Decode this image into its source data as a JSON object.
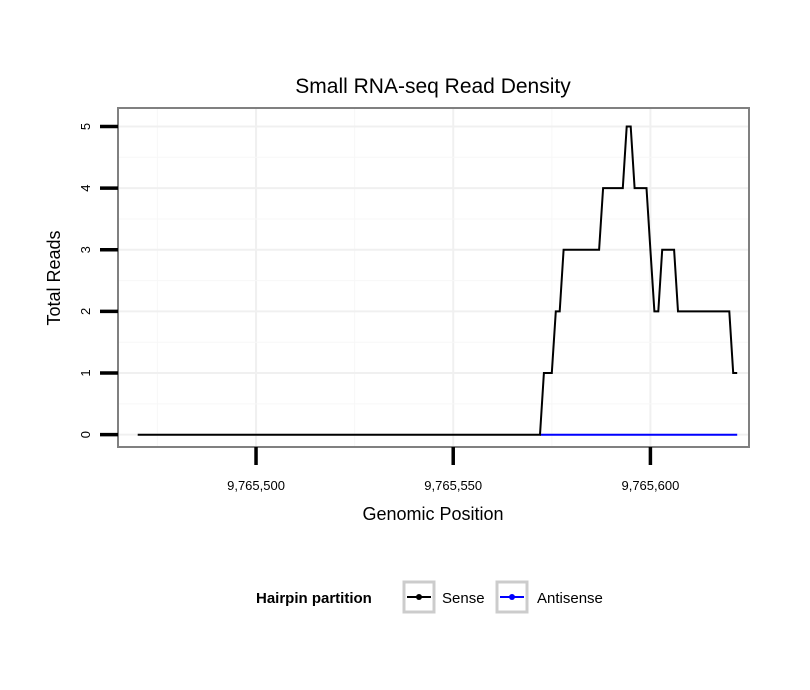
{
  "chart_data": {
    "type": "line",
    "title": "Small RNA-seq Read Density",
    "xlabel": "Genomic Position",
    "ylabel": "Total Reads",
    "xlim": [
      9765465,
      9765625
    ],
    "ylim": [
      -0.2,
      5.3
    ],
    "x_ticks": [
      9765500,
      9765550,
      9765600
    ],
    "x_tick_labels": [
      "9,765,500",
      "9,765,550",
      "9,765,600"
    ],
    "y_ticks": [
      0,
      1,
      2,
      3,
      4,
      5
    ],
    "y_tick_labels": [
      "0",
      "1",
      "2",
      "3",
      "4",
      "5"
    ],
    "grid": true,
    "legend": {
      "title": "Hairpin partition",
      "position": "bottom",
      "entries": [
        "Sense",
        "Antisense"
      ]
    },
    "series": [
      {
        "name": "Sense",
        "color": "#000000",
        "x": [
          9765470,
          9765572,
          9765573,
          9765575,
          9765576,
          9765577,
          9765578,
          9765587,
          9765588,
          9765593,
          9765594,
          9765595,
          9765596,
          9765599,
          9765600,
          9765601,
          9765602,
          9765603,
          9765606,
          9765607,
          9765620,
          9765621,
          9765622
        ],
        "y": [
          0,
          0,
          1,
          1,
          2,
          2,
          3,
          3,
          4,
          4,
          5,
          5,
          4,
          4,
          3,
          2,
          2,
          3,
          3,
          2,
          2,
          1,
          1
        ]
      },
      {
        "name": "Antisense",
        "color": "#0000ff",
        "x": [
          9765572,
          9765622
        ],
        "y": [
          0,
          0
        ]
      }
    ]
  }
}
